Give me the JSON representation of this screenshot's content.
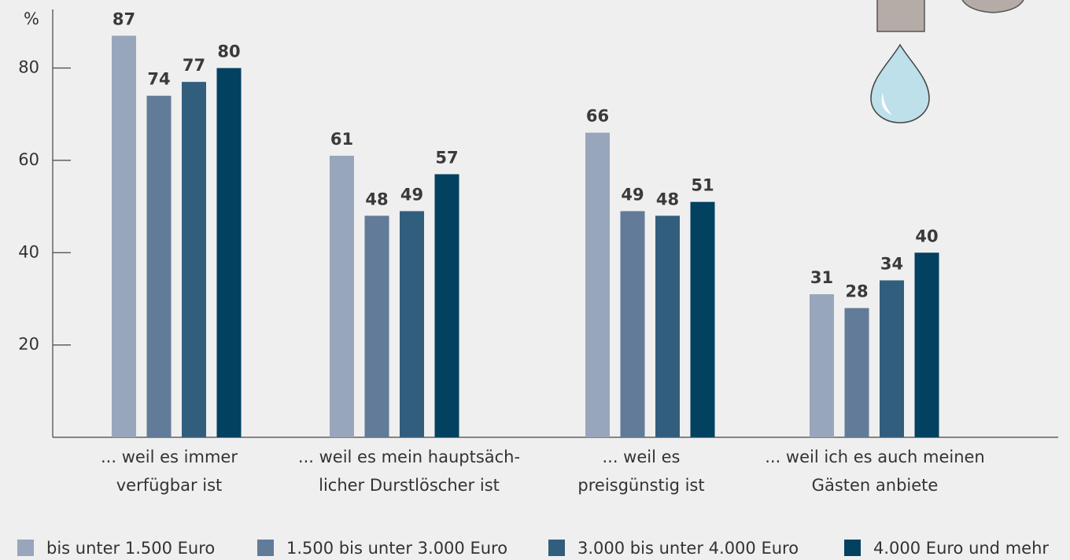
{
  "chart_data": {
    "type": "bar",
    "y_axis_label": "%",
    "categories": [
      [
        "... weil es immer",
        "verfügbar ist"
      ],
      [
        "... weil es mein hauptsäch-",
        "licher Durstlöscher ist"
      ],
      [
        "... weil es",
        "preisgünstig ist"
      ],
      [
        "... weil ich es auch meinen",
        "Gästen anbiete"
      ]
    ],
    "series": [
      {
        "name": "bis unter 1.500 Euro",
        "color": "#97a6bb",
        "values": [
          87,
          61,
          66,
          31
        ]
      },
      {
        "name": "1.500 bis unter 3.000 Euro",
        "color": "#627b98",
        "values": [
          74,
          48,
          49,
          28
        ]
      },
      {
        "name": "3.000 bis unter 4.000 Euro",
        "color": "#325e7e",
        "values": [
          77,
          49,
          48,
          34
        ]
      },
      {
        "name": "4.000 Euro und mehr",
        "color": "#02415f",
        "values": [
          80,
          57,
          51,
          40
        ]
      }
    ],
    "ylim": [
      0,
      92.7
    ],
    "yticks": [
      20,
      40,
      60,
      80
    ]
  }
}
